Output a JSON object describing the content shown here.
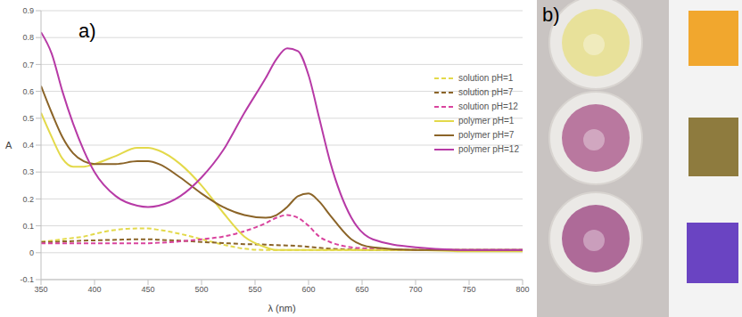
{
  "chart_data": {
    "type": "line",
    "panel": "a)",
    "x_label": "λ (nm)",
    "y_label": "A",
    "x": [
      350,
      360,
      370,
      380,
      390,
      400,
      420,
      440,
      450,
      460,
      480,
      500,
      520,
      540,
      560,
      570,
      580,
      590,
      600,
      610,
      620,
      640,
      660,
      700,
      750,
      800
    ],
    "xlim": [
      350,
      800
    ],
    "xticks": [
      350,
      400,
      450,
      500,
      550,
      600,
      650,
      700,
      750,
      800
    ],
    "ylim": [
      -0.1,
      0.9
    ],
    "yticks": [
      -0.1,
      0,
      0.1,
      0.2,
      0.3,
      0.4,
      0.5,
      0.6,
      0.7,
      0.8,
      0.9
    ],
    "grid": true,
    "legend": "right",
    "series": [
      {
        "name": "solution pH=1",
        "color": "#e3d94a",
        "line_style": "dashed",
        "values": [
          0.04,
          0.045,
          0.05,
          0.055,
          0.06,
          0.07,
          0.085,
          0.09,
          0.09,
          0.085,
          0.07,
          0.05,
          0.03,
          0.015,
          0.01,
          0.01,
          0.01,
          0.01,
          0.01,
          0.01,
          0.01,
          0.01,
          0.01,
          0.01,
          0.01,
          0.01
        ]
      },
      {
        "name": "solution pH=7",
        "color": "#8b6428",
        "line_style": "dashed",
        "values": [
          0.04,
          0.04,
          0.042,
          0.043,
          0.045,
          0.046,
          0.048,
          0.05,
          0.05,
          0.048,
          0.045,
          0.04,
          0.036,
          0.032,
          0.03,
          0.028,
          0.027,
          0.025,
          0.022,
          0.018,
          0.015,
          0.012,
          0.01,
          0.01,
          0.01,
          0.01
        ]
      },
      {
        "name": "solution pH=12",
        "color": "#d9449e",
        "line_style": "dashed",
        "values": [
          0.035,
          0.035,
          0.035,
          0.035,
          0.035,
          0.035,
          0.035,
          0.035,
          0.035,
          0.037,
          0.042,
          0.05,
          0.06,
          0.08,
          0.11,
          0.13,
          0.14,
          0.13,
          0.1,
          0.06,
          0.04,
          0.02,
          0.015,
          0.01,
          0.01,
          0.01
        ]
      },
      {
        "name": "polymer pH=1",
        "color": "#e3d94a",
        "line_style": "solid",
        "values": [
          0.52,
          0.43,
          0.35,
          0.32,
          0.32,
          0.33,
          0.36,
          0.39,
          0.39,
          0.38,
          0.33,
          0.25,
          0.15,
          0.06,
          0.02,
          0.01,
          0.01,
          0.01,
          0.01,
          0.01,
          0.01,
          0.01,
          0.01,
          0.01,
          0.005,
          0.005
        ]
      },
      {
        "name": "polymer pH=7",
        "color": "#8b6428",
        "line_style": "solid",
        "values": [
          0.62,
          0.52,
          0.43,
          0.37,
          0.34,
          0.33,
          0.33,
          0.34,
          0.34,
          0.33,
          0.28,
          0.22,
          0.17,
          0.14,
          0.13,
          0.14,
          0.17,
          0.21,
          0.22,
          0.19,
          0.14,
          0.05,
          0.02,
          0.01,
          0.01,
          0.01
        ]
      },
      {
        "name": "polymer pH=12",
        "color": "#b73aa6",
        "line_style": "solid",
        "values": [
          0.82,
          0.74,
          0.6,
          0.48,
          0.38,
          0.3,
          0.21,
          0.175,
          0.17,
          0.175,
          0.21,
          0.28,
          0.38,
          0.52,
          0.65,
          0.72,
          0.76,
          0.75,
          0.66,
          0.5,
          0.34,
          0.13,
          0.05,
          0.02,
          0.01,
          0.01
        ]
      }
    ]
  },
  "photo": {
    "label": "b)"
  }
}
